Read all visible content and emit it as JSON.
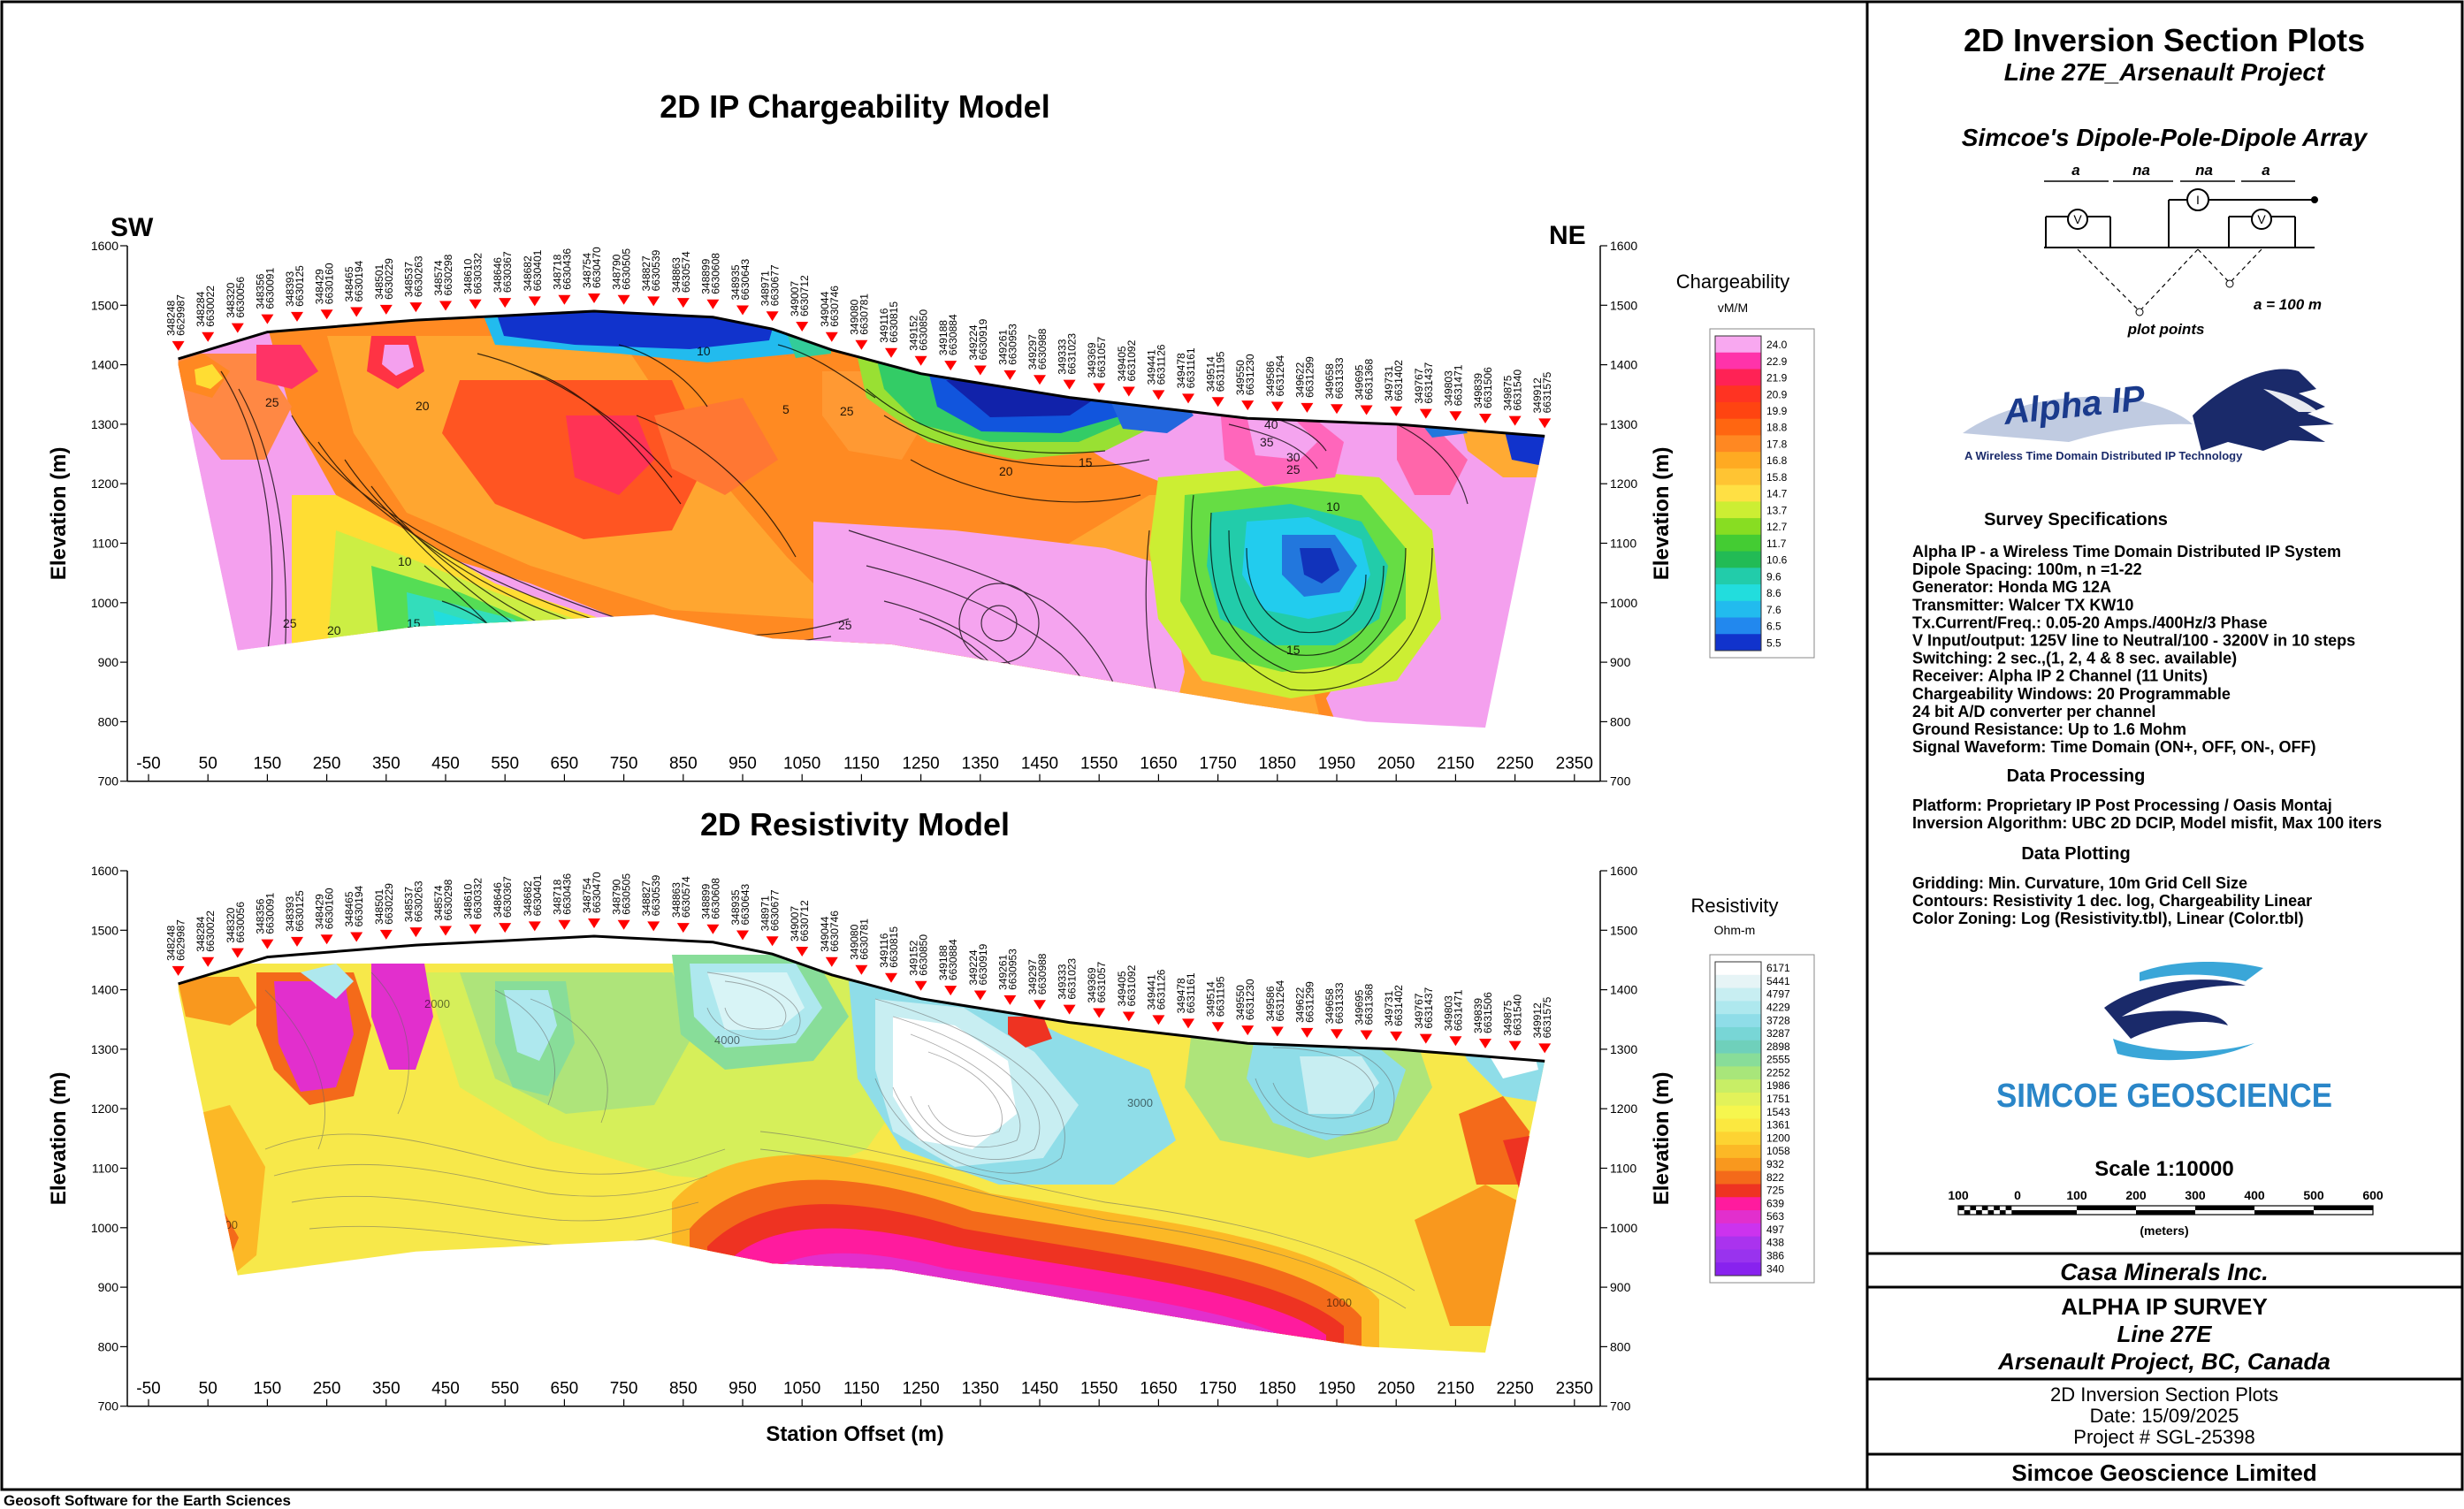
{
  "footer_left": "Geosoft Software for the Earth Sciences",
  "colors": {
    "topo": "#000000",
    "electrode": "#ff0000"
  },
  "panel_shared": {
    "x_ticks": [
      "-50",
      "50",
      "150",
      "250",
      "350",
      "450",
      "550",
      "650",
      "750",
      "850",
      "950",
      "1050",
      "1150",
      "1250",
      "1350",
      "1450",
      "1550",
      "1650",
      "1750",
      "1850",
      "1950",
      "2050",
      "2150",
      "2250",
      "2350"
    ],
    "y_ticks": [
      "1600",
      "1500",
      "1400",
      "1300",
      "1200",
      "1100",
      "1000",
      "900",
      "800",
      "700"
    ],
    "y_label": "Elevation (m)",
    "x_label": "Station Offset (m)",
    "stations": [
      [
        "348248",
        "6629987"
      ],
      [
        "348284",
        "6630022"
      ],
      [
        "348320",
        "6630056"
      ],
      [
        "348356",
        "6630091"
      ],
      [
        "348393",
        "6630125"
      ],
      [
        "348429",
        "6630160"
      ],
      [
        "348465",
        "6630194"
      ],
      [
        "348501",
        "6630229"
      ],
      [
        "348537",
        "6630263"
      ],
      [
        "348574",
        "6630298"
      ],
      [
        "348610",
        "6630332"
      ],
      [
        "348646",
        "6630367"
      ],
      [
        "348682",
        "6630401"
      ],
      [
        "348718",
        "6630436"
      ],
      [
        "348754",
        "6630470"
      ],
      [
        "348790",
        "6630505"
      ],
      [
        "348827",
        "6630539"
      ],
      [
        "348863",
        "6630574"
      ],
      [
        "348899",
        "6630608"
      ],
      [
        "348935",
        "6630643"
      ],
      [
        "348971",
        "6630677"
      ],
      [
        "349007",
        "6630712"
      ],
      [
        "349044",
        "6630746"
      ],
      [
        "349080",
        "6630781"
      ],
      [
        "349116",
        "6630815"
      ],
      [
        "349152",
        "6630850"
      ],
      [
        "349188",
        "6630884"
      ],
      [
        "349224",
        "6630919"
      ],
      [
        "349261",
        "6630953"
      ],
      [
        "349297",
        "6630988"
      ],
      [
        "349333",
        "6631023"
      ],
      [
        "349369",
        "6631057"
      ],
      [
        "349405",
        "6631092"
      ],
      [
        "349441",
        "6631126"
      ],
      [
        "349478",
        "6631161"
      ],
      [
        "349514",
        "6631195"
      ],
      [
        "349550",
        "6631230"
      ],
      [
        "349586",
        "6631264"
      ],
      [
        "349622",
        "6631299"
      ],
      [
        "349658",
        "6631333"
      ],
      [
        "349695",
        "6631368"
      ],
      [
        "349731",
        "6631402"
      ],
      [
        "349767",
        "6631437"
      ],
      [
        "349803",
        "6631471"
      ],
      [
        "349839",
        "6631506"
      ],
      [
        "349875",
        "6631540"
      ],
      [
        "349912",
        "6631575"
      ]
    ]
  },
  "panels": {
    "ip": {
      "title": "2D IP Chargeability Model",
      "sw": "SW",
      "ne": "NE",
      "legend_title": "Chargeability",
      "legend_unit": "vM/M",
      "legend_values": [
        "24.0",
        "22.9",
        "21.9",
        "20.9",
        "19.9",
        "18.8",
        "17.8",
        "16.8",
        "15.8",
        "14.7",
        "13.7",
        "12.7",
        "11.7",
        "10.6",
        "9.6",
        "8.6",
        "7.6",
        "6.5",
        "5.5"
      ],
      "legend_colors": [
        "#f8a8f0",
        "#ff33aa",
        "#ff2255",
        "#ff3322",
        "#ff4411",
        "#ff6611",
        "#ff8822",
        "#ffaa22",
        "#ffc433",
        "#ffe044",
        "#ccee33",
        "#88dd22",
        "#44cc33",
        "#22bb55",
        "#22ccaa",
        "#22dddd",
        "#22bbee",
        "#2288ee",
        "#1133cc"
      ],
      "contour_labels": [
        "20",
        "25",
        "30",
        "35",
        "40",
        "15",
        "10",
        "5",
        "25",
        "20",
        "15",
        "10",
        "15",
        "25",
        "20",
        "15"
      ]
    },
    "res": {
      "title": "2D Resistivity Model",
      "legend_title": "Resistivity",
      "legend_unit": "Ohm-m",
      "legend_values": [
        "6171",
        "5441",
        "4797",
        "4229",
        "3728",
        "3287",
        "2898",
        "2555",
        "2252",
        "1986",
        "1751",
        "1543",
        "1361",
        "1200",
        "1058",
        "932",
        "822",
        "725",
        "639",
        "563",
        "497",
        "438",
        "386",
        "340"
      ],
      "legend_colors": [
        "#ffffff",
        "#e6f4f6",
        "#c8eef2",
        "#aee8ee",
        "#8fdde8",
        "#78d6d6",
        "#6fd0bb",
        "#88dd99",
        "#a8e67a",
        "#c8ee66",
        "#e2f25a",
        "#f6f64e",
        "#fbe840",
        "#fdd332",
        "#fcb826",
        "#f9981e",
        "#f46a1a",
        "#ee3322",
        "#ff1b9e",
        "#e22fcd",
        "#cc33ee",
        "#aa33ee",
        "#9933ee",
        "#8822ee"
      ],
      "contour_labels": [
        "4000",
        "3000",
        "1000",
        "2000",
        "3000",
        "4000"
      ]
    }
  },
  "title_block": {
    "heading": "2D Inversion Section Plots",
    "subheading": "Line 27E_Arsenault Project",
    "array_title": "Simcoe's Dipole-Pole-Dipole Array",
    "array_labels": [
      "a",
      "na",
      "na",
      "a"
    ],
    "array_a": "a = 100 m",
    "plot_points": "plot points",
    "logo_alpha": "Alpha IP",
    "logo_tagline": "A Wireless Time Domain Distributed IP Technology",
    "survey_specs_title": "Survey Specifications",
    "survey_specs": [
      "Alpha IP - a Wireless  Time Domain Distributed IP System",
      "Dipole Spacing: 100m, n =1-22",
      "Generator: Honda MG 12A",
      "Transmitter: Walcer TX KW10",
      "Tx.Current/Freq.: 0.05-20 Amps./400Hz/3 Phase",
      "V Input/output: 125V line to Neutral/100 - 3200V in 10 steps",
      "Switching: 2 sec.,(1, 2, 4 & 8 sec. available)",
      "Receiver: Alpha IP 2 Channel (11 Units)",
      "Chargeability Windows: 20 Programmable",
      "24 bit A/D converter per channel",
      "Ground Resistance: Up to 1.6 Mohm",
      "Signal Waveform: Time Domain (ON+, OFF, ON-, OFF)"
    ],
    "data_processing_title": "Data Processing",
    "data_processing": [
      "Platform: Proprietary IP Post Processing / Oasis Montaj",
      "Inversion Algorithm: UBC 2D DCIP, Model misfit, Max 100 iters"
    ],
    "data_plotting_title": "Data Plotting",
    "data_plotting": [
      "Gridding: Min. Curvature, 10m Grid Cell Size",
      "Contours: Resistivity 1 dec. log, Chargeability Linear",
      "Color Zoning: Log (Resistivity.tbl), Linear (Color.tbl)"
    ],
    "simcoe_logo_text": "SIMCOE GEOSCIENCE",
    "scale_title": "Scale 1:10000",
    "scale_ticks": [
      "100",
      "0",
      "100",
      "200",
      "300",
      "400",
      "500",
      "600"
    ],
    "scale_unit": "(meters)",
    "client": "Casa Minerals Inc.",
    "survey_name": "ALPHA IP SURVEY",
    "line": "Line 27E",
    "project": "Arsenault Project, BC, Canada",
    "plot_type": "2D Inversion Section Plots",
    "date": "Date: 15/09/2025",
    "project_number": "Project # SGL-25398",
    "company": "Simcoe Geoscience Limited"
  }
}
